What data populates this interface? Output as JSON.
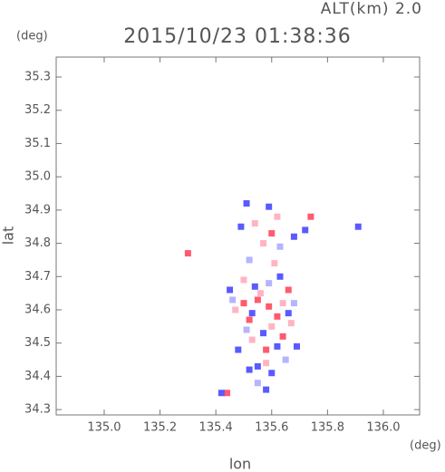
{
  "chart_data": {
    "type": "scatter",
    "title": "2015/10/23 01:38:36",
    "subtitle": "ALT(km) 2.0",
    "y_unit": "(deg)",
    "x_unit": "(deg)",
    "x_label": "lon",
    "y_label": "lat",
    "xlim": [
      134.828,
      136.13
    ],
    "ylim": [
      34.284,
      35.36
    ],
    "xticks": [
      {
        "value": 135.0,
        "label": "135.0"
      },
      {
        "value": 135.2,
        "label": "135.2"
      },
      {
        "value": 135.4,
        "label": "135.4"
      },
      {
        "value": 135.6,
        "label": "135.6"
      },
      {
        "value": 135.8,
        "label": "135.8"
      },
      {
        "value": 136.0,
        "label": "136.0"
      }
    ],
    "yticks": [
      34.3,
      34.4,
      34.5,
      34.6,
      34.7,
      34.8,
      34.9,
      {
        "value": 35.0,
        "label": "35.0"
      },
      35.1,
      35.2,
      35.3
    ],
    "series": [
      {
        "color": "#ff5a6e",
        "x": [
          135.3,
          135.59,
          135.62,
          135.55,
          135.5,
          135.66,
          135.58,
          135.74,
          135.44,
          135.6,
          135.52,
          135.64
        ],
        "values": [
          34.77,
          34.61,
          34.58,
          34.63,
          34.62,
          34.66,
          34.48,
          34.88,
          34.35,
          34.83,
          34.57,
          34.52
        ]
      },
      {
        "color": "#5a5aff",
        "x": [
          135.48,
          135.51,
          135.59,
          135.55,
          135.52,
          135.6,
          135.62,
          135.68,
          135.72,
          135.57,
          135.54,
          135.45,
          135.66,
          135.63,
          135.58,
          135.42,
          135.91,
          135.49,
          135.69,
          135.53
        ],
        "values": [
          34.48,
          34.92,
          34.91,
          34.43,
          34.42,
          34.41,
          34.49,
          34.82,
          34.84,
          34.53,
          34.67,
          34.66,
          34.59,
          34.7,
          34.36,
          34.35,
          34.85,
          34.85,
          34.49,
          34.59
        ]
      },
      {
        "color": "#ffb4c4",
        "x": [
          135.56,
          135.5,
          135.61,
          135.57,
          135.64,
          135.53,
          135.6,
          135.47,
          135.67,
          135.58,
          135.54,
          135.62
        ],
        "values": [
          34.65,
          34.69,
          34.74,
          34.8,
          34.62,
          34.51,
          34.55,
          34.6,
          34.56,
          34.44,
          34.86,
          34.88
        ]
      },
      {
        "color": "#b4b4ff",
        "x": [
          135.52,
          135.46,
          135.65,
          135.59,
          135.55,
          135.63,
          135.51,
          135.68
        ],
        "values": [
          34.75,
          34.63,
          34.45,
          34.68,
          34.38,
          34.79,
          34.54,
          34.62
        ]
      }
    ]
  }
}
